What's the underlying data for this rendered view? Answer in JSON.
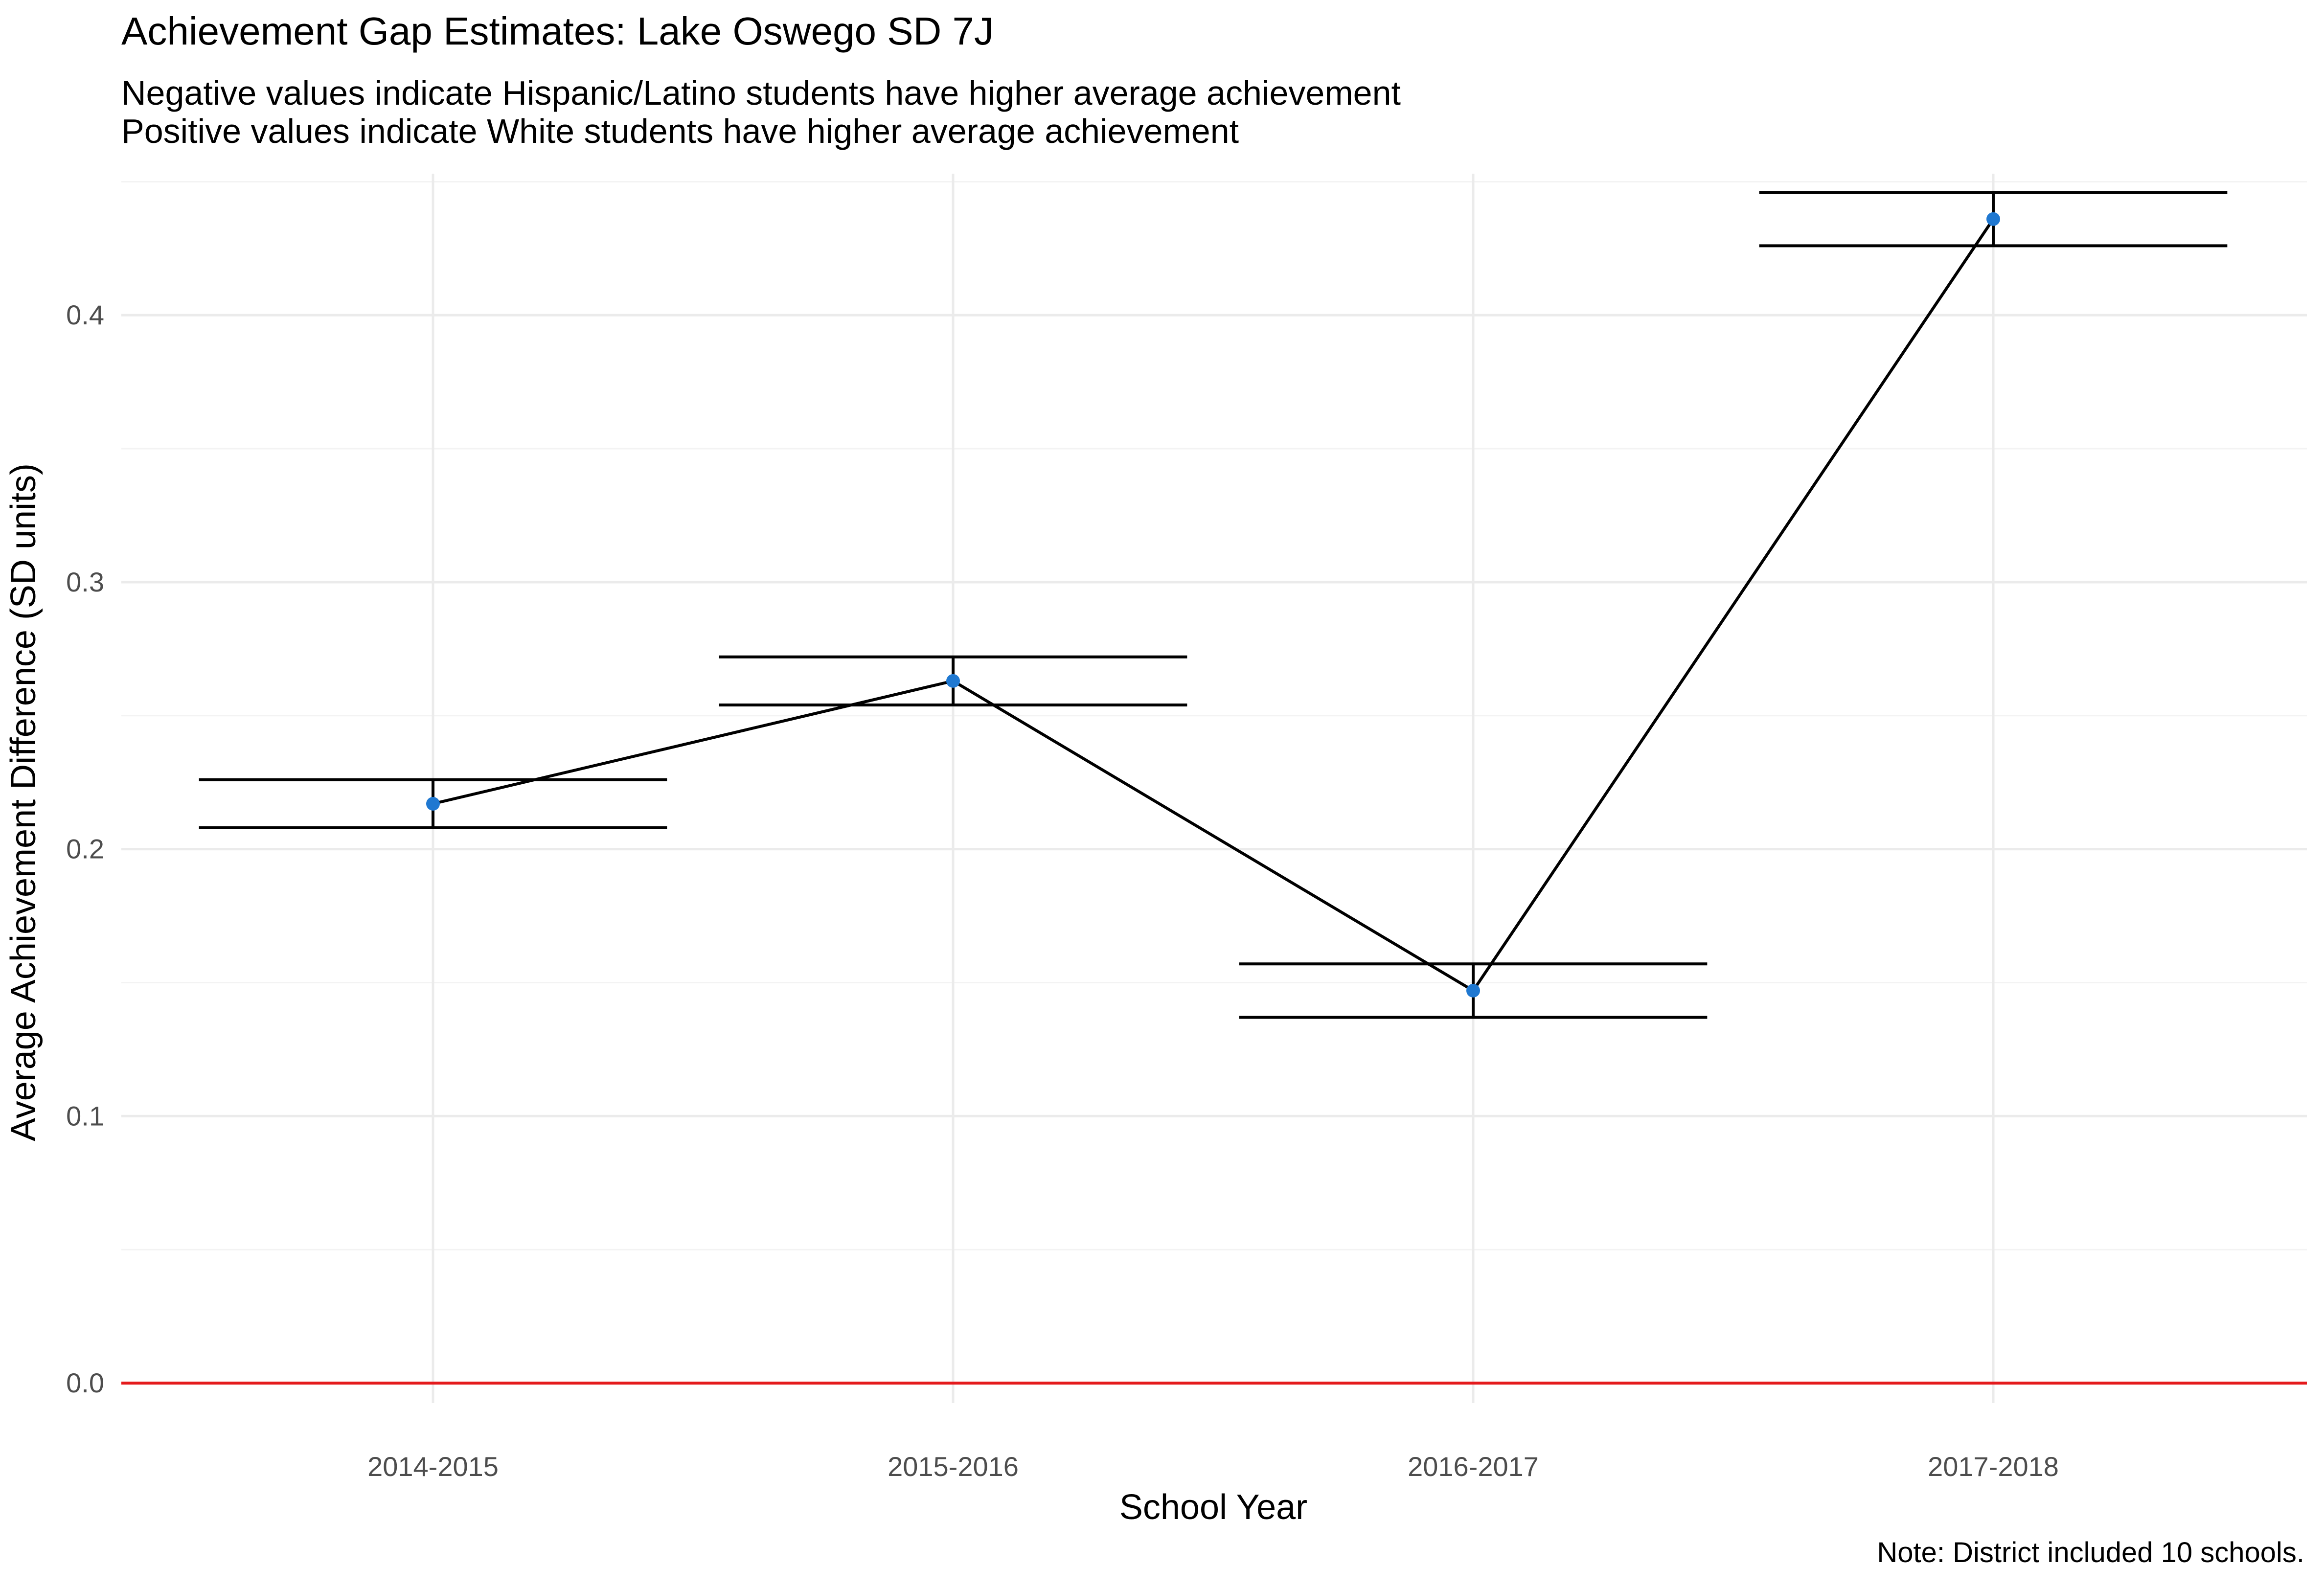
{
  "chart_data": {
    "type": "line",
    "title": "Achievement Gap Estimates: Lake Oswego SD 7J",
    "subtitle": [
      "Negative values indicate Hispanic/Latino students have higher average achievement",
      "Positive values indicate White students have higher average achievement"
    ],
    "xlabel": "School Year",
    "ylabel": "Average Achievement Difference (SD units)",
    "caption": "Note: District included 10 schools.",
    "categories": [
      "2014-2015",
      "2015-2016",
      "2016-2017",
      "2017-2018"
    ],
    "values": [
      0.217,
      0.263,
      0.147,
      0.436
    ],
    "error_low": [
      0.208,
      0.254,
      0.137,
      0.426
    ],
    "error_high": [
      0.226,
      0.272,
      0.157,
      0.446
    ],
    "yticks": [
      0.0,
      0.1,
      0.2,
      0.3,
      0.4
    ],
    "ytick_labels": [
      "0.0",
      "0.1",
      "0.2",
      "0.3",
      "0.4"
    ],
    "ylim": [
      -0.0075,
      0.453
    ],
    "reference_line": 0.0,
    "grid": true,
    "colors": {
      "point": "#1f78d1",
      "line": "#000000",
      "reference": "#e41a1c",
      "grid": "#ebebeb"
    }
  }
}
